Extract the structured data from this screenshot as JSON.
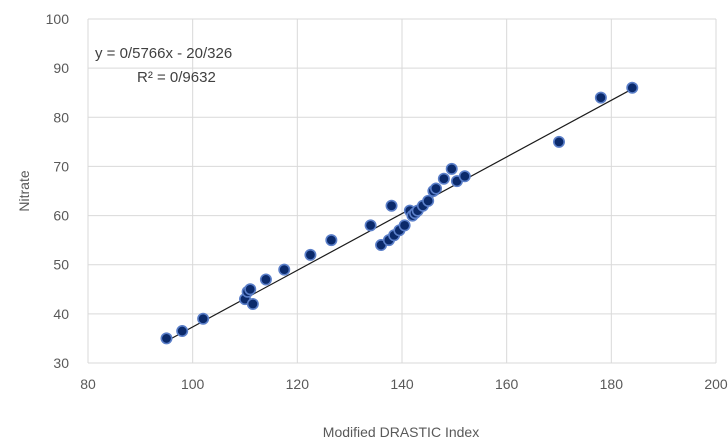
{
  "chart_data": {
    "type": "scatter",
    "title": "",
    "xlabel": "Modified DRASTIC  Index",
    "ylabel": "Nitrate",
    "xlim": [
      80,
      200
    ],
    "ylim": [
      30,
      100
    ],
    "x_ticks": [
      "80",
      "100",
      "120",
      "140",
      "160",
      "180",
      "200"
    ],
    "y_ticks": [
      "30",
      "40",
      "50",
      "60",
      "70",
      "80",
      "90",
      "100"
    ],
    "grid": true,
    "legend": "none",
    "trendline": {
      "type": "linear",
      "slope": 0.5766,
      "intercept": -20.326,
      "x_range": [
        95,
        184
      ],
      "equation_label": "y = 0/5766x - 20/326",
      "r2_label": "R² = 0/9632"
    },
    "marker_color": "#0b2a6b",
    "marker_edge_color": "#5b7fc9",
    "series": [
      {
        "points": [
          [
            95,
            35
          ],
          [
            98,
            36.5
          ],
          [
            102,
            39
          ],
          [
            110,
            43
          ],
          [
            110.5,
            44.5
          ],
          [
            111,
            45
          ],
          [
            111.5,
            42
          ],
          [
            114,
            47
          ],
          [
            117.5,
            49
          ],
          [
            122.5,
            52
          ],
          [
            126.5,
            55
          ],
          [
            134,
            58
          ],
          [
            136,
            54
          ],
          [
            137.5,
            55
          ],
          [
            138,
            62
          ],
          [
            138.5,
            56
          ],
          [
            139.5,
            57
          ],
          [
            140.5,
            58
          ],
          [
            141.5,
            61
          ],
          [
            142,
            60
          ],
          [
            142.5,
            60.5
          ],
          [
            143,
            61
          ],
          [
            144,
            62
          ],
          [
            145,
            63
          ],
          [
            146,
            65
          ],
          [
            146.5,
            65.5
          ],
          [
            148,
            67.5
          ],
          [
            149.5,
            69.5
          ],
          [
            150.5,
            67
          ],
          [
            152,
            68
          ],
          [
            170,
            75
          ],
          [
            178,
            84
          ],
          [
            184,
            86
          ]
        ]
      }
    ]
  }
}
